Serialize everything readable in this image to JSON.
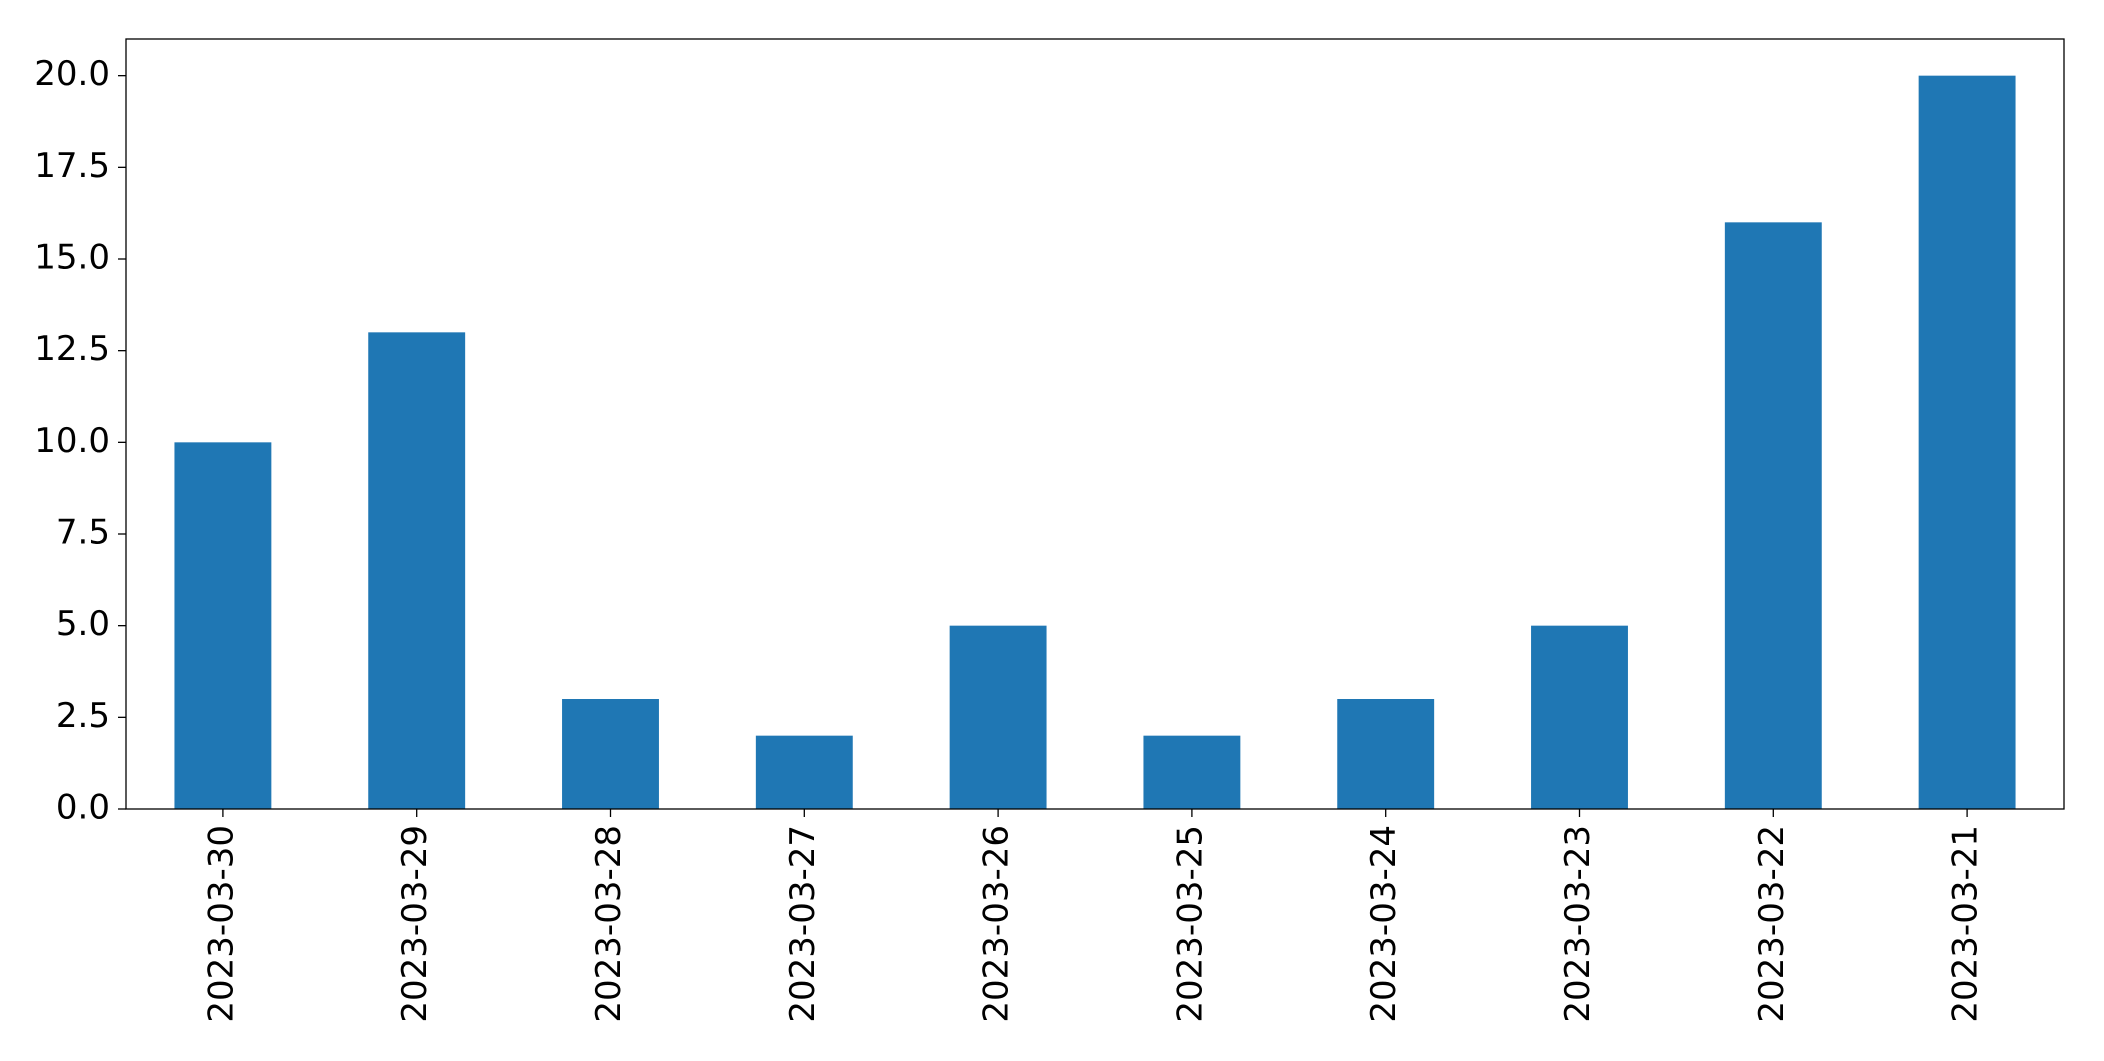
{
  "chart_data": {
    "type": "bar",
    "categories": [
      "2023-03-30",
      "2023-03-29",
      "2023-03-28",
      "2023-03-27",
      "2023-03-26",
      "2023-03-25",
      "2023-03-24",
      "2023-03-23",
      "2023-03-22",
      "2023-03-21"
    ],
    "values": [
      10,
      13,
      3,
      2,
      5,
      2,
      3,
      5,
      16,
      20
    ],
    "color": "#1f77b4",
    "ylim": [
      0,
      21
    ],
    "yticks": [
      {
        "value": 0,
        "label": "0.0"
      },
      2.5,
      {
        "value": 5,
        "label": "5.0"
      },
      7.5,
      {
        "value": 10,
        "label": "10.0"
      },
      12.5,
      {
        "value": 15,
        "label": "15.0"
      },
      17.5,
      {
        "value": 20,
        "label": "20.0"
      }
    ],
    "grid": false
  }
}
